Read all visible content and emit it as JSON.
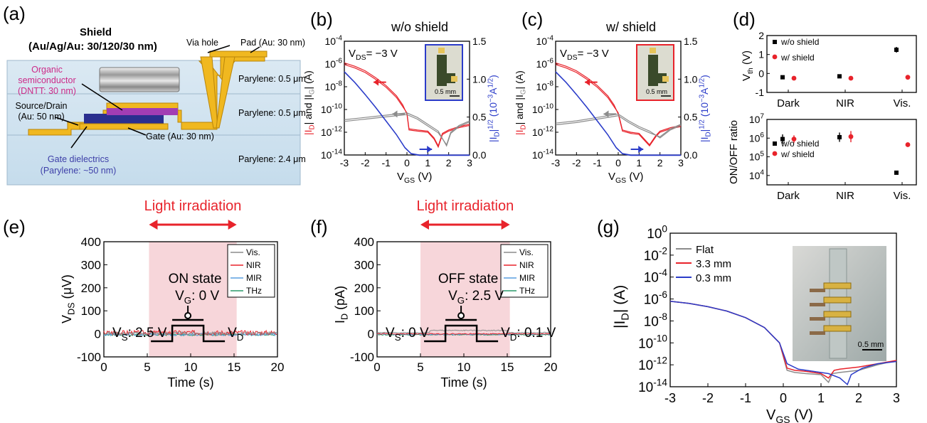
{
  "panel_letters": [
    "(a)",
    "(b)",
    "(c)",
    "(d)",
    "(e)",
    "(f)",
    "(g)"
  ],
  "colors": {
    "red": "#e8232b",
    "blue": "#2b3cc9",
    "gray": "#8c8c8c",
    "green": "#2a9a6a",
    "lightblue": "#5a9fe0",
    "pink": "#f7d6da",
    "gold": "#f0b820",
    "purple": "#a23db4",
    "navy": "#2a2f8f"
  },
  "schematic": {
    "shield": "Shield",
    "shield_spec": "(Au/Ag/Au: 30/120/30 nm)",
    "organic_1": "Organic",
    "organic_2": "semiconductor",
    "organic_3": "(DNTT: 30 nm)",
    "source_drain_1": "Source/Drain",
    "source_drain_2": "(Au: 50 nm)",
    "gate": "Gate (Au: 30 nm)",
    "gate_diel_1": "Gate dielectrics",
    "gate_diel_2": "(Parylene: ~50 nm)",
    "via_hole": "Via hole",
    "pad": "Pad (Au: 30 nm)",
    "parylene_top": "Parylene: 0.5 μm",
    "parylene_mid": "Parylene: 0.5 μm",
    "parylene_bot": "Parylene: 2.4 μm"
  },
  "chart_data": [
    {
      "panel": "b",
      "type": "line",
      "title": "w/o shield",
      "annotation": "VDS= −3 V",
      "inset_scale": "0.5 mm",
      "xlabel": "VGS (V)",
      "ylabel_left": "|ID| and |IG| (A)",
      "ylabel_right": "|ID|1/2 (10−3A1/2)",
      "xlim": [
        -3,
        3
      ],
      "ylim_left_log10": [
        -14,
        -4
      ],
      "ylim_right": [
        0,
        1.5
      ],
      "x_ticks": [
        "-3",
        "-2",
        "-1",
        "0",
        "1",
        "2",
        "3"
      ],
      "y_left_ticks": [
        "10-14",
        "10-12",
        "10-10",
        "10-8",
        "10-6",
        "10-4"
      ],
      "y_right_ticks": [
        "0.0",
        "0.5",
        "1.0",
        "1.5"
      ],
      "series": [
        {
          "quantity": "ID",
          "color": "red",
          "x": [
            -3,
            -2.5,
            -2,
            -1.5,
            -1,
            -0.5,
            -0.2,
            0,
            0.1,
            0.5,
            1,
            1.3,
            1.5,
            1.7,
            2,
            2.5,
            3
          ],
          "log10y": [
            -5.9,
            -6.2,
            -6.6,
            -7.2,
            -7.9,
            -8.8,
            -9.6,
            -10.4,
            -11.8,
            -11.9,
            -12.0,
            -12.6,
            -13.3,
            -12.2,
            -11.9,
            -11.6,
            -11.4
          ]
        },
        {
          "quantity": "IG",
          "color": "gray",
          "x": [
            -3,
            -2,
            -1,
            0,
            0.5,
            1,
            1.5,
            1.9,
            2.1,
            2.5,
            3
          ],
          "log10y": [
            -10.9,
            -10.7,
            -10.5,
            -10.3,
            -10.7,
            -11.3,
            -11.9,
            -13.2,
            -12.1,
            -11.5,
            -11.1
          ]
        },
        {
          "quantity": "ID^1/2",
          "color": "blue",
          "x": [
            -3,
            -2.5,
            -2,
            -1.5,
            -1,
            -0.5,
            -0.1,
            0.2,
            0.6,
            1,
            3
          ],
          "y": [
            1.1,
            0.96,
            0.8,
            0.63,
            0.45,
            0.27,
            0.1,
            0.02,
            0.0,
            0.0,
            0.0
          ]
        }
      ]
    },
    {
      "panel": "c",
      "type": "line",
      "title": "w/ shield",
      "annotation": "VDS= −3 V",
      "inset_scale": "0.5 mm",
      "xlabel": "VGS (V)",
      "ylabel_left": "|ID| and |IG| (A)",
      "ylabel_right": "|ID|1/2 (10−3A1/2)",
      "xlim": [
        -3,
        3
      ],
      "ylim_left_log10": [
        -14,
        -4
      ],
      "ylim_right": [
        0,
        1.5
      ],
      "x_ticks": [
        "-3",
        "-2",
        "-1",
        "0",
        "1",
        "2",
        "3"
      ],
      "y_left_ticks": [
        "10-14",
        "10-12",
        "10-10",
        "10-8",
        "10-6",
        "10-4"
      ],
      "y_right_ticks": [
        "0.0",
        "0.5",
        "1.0",
        "1.5"
      ],
      "series": [
        {
          "quantity": "ID",
          "color": "red",
          "x": [
            -3,
            -2.5,
            -2,
            -1.5,
            -1,
            -0.5,
            -0.2,
            0,
            0.2,
            0.6,
            1,
            1.3,
            1.5,
            1.8,
            2,
            2.5,
            3
          ],
          "log10y": [
            -5.9,
            -6.2,
            -6.6,
            -7.2,
            -7.9,
            -8.8,
            -9.6,
            -10.4,
            -11.9,
            -12.1,
            -12.2,
            -12.8,
            -13.2,
            -12.4,
            -12.0,
            -11.7,
            -11.5
          ]
        },
        {
          "quantity": "IG",
          "color": "gray",
          "x": [
            -3,
            -2,
            -1,
            0,
            0.5,
            1,
            1.5,
            2,
            2.5,
            3
          ],
          "log10y": [
            -11.2,
            -11.0,
            -10.7,
            -10.4,
            -11.0,
            -11.5,
            -11.9,
            -12.5,
            -11.8,
            -11.4
          ]
        },
        {
          "quantity": "ID^1/2",
          "color": "blue",
          "x": [
            -3,
            -2.5,
            -2,
            -1.5,
            -1,
            -0.5,
            -0.1,
            0.2,
            0.6,
            1,
            3
          ],
          "y": [
            1.1,
            0.96,
            0.8,
            0.63,
            0.45,
            0.27,
            0.1,
            0.02,
            0.0,
            0.0,
            0.0
          ]
        }
      ]
    },
    {
      "panel": "d-top",
      "type": "scatter",
      "ylabel": "Vth (V)",
      "categories": [
        "Dark",
        "NIR",
        "Vis."
      ],
      "ylim": [
        -1,
        2
      ],
      "y_ticks": [
        "-1",
        "0",
        "1",
        "2"
      ],
      "legend": [
        "w/o shield",
        "w/ shield"
      ],
      "series": [
        {
          "name": "w/o shield",
          "color": "black",
          "values": [
            -0.2,
            -0.15,
            1.25
          ],
          "err": [
            0.1,
            0.1,
            0.15
          ]
        },
        {
          "name": "w/ shield",
          "color": "red",
          "values": [
            -0.25,
            -0.25,
            -0.2
          ],
          "err": [
            0.1,
            0.1,
            0.12
          ]
        }
      ]
    },
    {
      "panel": "d-bottom",
      "type": "scatter",
      "ylabel": "ON/OFF ratio",
      "categories": [
        "Dark",
        "NIR",
        "Vis."
      ],
      "ylim_log10": [
        3.5,
        7
      ],
      "y_ticks": [
        "104",
        "105",
        "106",
        "107"
      ],
      "legend": [
        "w/o shield",
        "w/ shield"
      ],
      "series": [
        {
          "name": "w/o shield",
          "color": "black",
          "log10": [
            5.95,
            6.05,
            4.15
          ],
          "err": [
            0.25,
            0.25,
            0.05
          ]
        },
        {
          "name": "w/ shield",
          "color": "red",
          "log10": [
            5.95,
            6.08,
            5.65
          ],
          "err": [
            0.2,
            0.3,
            0.12
          ]
        }
      ]
    },
    {
      "panel": "e",
      "type": "line",
      "headline": "Light irradiation",
      "state": "ON state",
      "gate_label": "VG: 0 V",
      "source_label": "VS: 2.5 V",
      "drain_label": "VD",
      "xlabel": "Time (s)",
      "ylabel": "VDS (μV)",
      "xlim": [
        0,
        20
      ],
      "ylim": [
        -100,
        400
      ],
      "x_ticks": [
        "0",
        "5",
        "10",
        "15",
        "20"
      ],
      "y_ticks": [
        "-100",
        "0",
        "100",
        "200",
        "300",
        "400"
      ],
      "irradiation": [
        5.2,
        15.3
      ],
      "legend": [
        "Vis.",
        "NIR",
        "MIR",
        "THz"
      ],
      "series": [
        {
          "name": "Vis.",
          "color": "gray",
          "level": 2,
          "noise": 7
        },
        {
          "name": "NIR",
          "color": "red",
          "level": 5,
          "noise": 10
        },
        {
          "name": "MIR",
          "color": "lightblue",
          "level": -2,
          "noise": 6
        },
        {
          "name": "THz",
          "color": "green",
          "level": -4,
          "noise": 4
        }
      ]
    },
    {
      "panel": "f",
      "type": "line",
      "headline": "Light irradiation",
      "state": "OFF state",
      "gate_label": "VG: 2.5 V",
      "source_label": "VS: 0 V",
      "drain_label": "VD: 0.1 V",
      "xlabel": "Time (s)",
      "ylabel": "ID (pA)",
      "xlim": [
        0,
        20
      ],
      "ylim": [
        -100,
        400
      ],
      "x_ticks": [
        "0",
        "5",
        "10",
        "15",
        "20"
      ],
      "y_ticks": [
        "-100",
        "0",
        "100",
        "200",
        "300",
        "400"
      ],
      "irradiation": [
        5.0,
        15.3
      ],
      "legend": [
        "Vis.",
        "NIR",
        "MIR",
        "THz"
      ],
      "series": [
        {
          "name": "Vis.",
          "color": "gray",
          "level": 5,
          "noise": 2,
          "step": [
            6,
            15,
            18
          ]
        },
        {
          "name": "NIR",
          "color": "red",
          "level": 0,
          "noise": 2
        },
        {
          "name": "MIR",
          "color": "lightblue",
          "level": -2,
          "noise": 3
        },
        {
          "name": "THz",
          "color": "green",
          "level": -4,
          "noise": 2
        }
      ]
    },
    {
      "panel": "g",
      "type": "line",
      "xlabel": "VGS (V)",
      "ylabel": "|ID| (A)",
      "xlim": [
        -3,
        3
      ],
      "ylim_log10": [
        -14,
        0
      ],
      "x_ticks": [
        "-3",
        "-2",
        "-1",
        "0",
        "1",
        "2",
        "3"
      ],
      "y_ticks": [
        "10-14",
        "10-12",
        "10-10",
        "10-8",
        "10-6",
        "10-4",
        "10-2",
        "100"
      ],
      "inset_scale": "0.5 mm",
      "legend": [
        "Flat",
        "3.3 mm",
        "0.3 mm"
      ],
      "series": [
        {
          "name": "Flat",
          "color": "gray",
          "x": [
            -3,
            -2.5,
            -2,
            -1.5,
            -1,
            -0.5,
            -0.1,
            0.1,
            0.3,
            0.6,
            1,
            1.2,
            1.3,
            1.5,
            2,
            2.5,
            3
          ],
          "log10y": [
            -6.2,
            -6.4,
            -6.7,
            -7.1,
            -7.7,
            -8.6,
            -10.0,
            -12.5,
            -12.7,
            -12.8,
            -12.9,
            -13.6,
            -12.8,
            -12.7,
            -12.5,
            -12.0,
            -11.6
          ]
        },
        {
          "name": "3.3 mm",
          "color": "red",
          "x": [
            -3,
            -2.5,
            -2,
            -1.5,
            -1,
            -0.5,
            -0.1,
            0.1,
            0.3,
            0.6,
            1,
            1.2,
            1.35,
            1.5,
            2,
            2.5,
            3
          ],
          "log10y": [
            -6.2,
            -6.4,
            -6.7,
            -7.1,
            -7.7,
            -8.6,
            -10.0,
            -12.3,
            -12.5,
            -12.6,
            -12.8,
            -13.2,
            -12.5,
            -12.4,
            -12.2,
            -11.9,
            -11.6
          ]
        },
        {
          "name": "0.3 mm",
          "color": "blue",
          "x": [
            -3,
            -2.5,
            -2,
            -1.5,
            -1,
            -0.5,
            -0.1,
            0.1,
            0.4,
            0.8,
            1.2,
            1.5,
            1.7,
            1.8,
            2.1,
            2.5,
            3
          ],
          "log10y": [
            -6.2,
            -6.4,
            -6.7,
            -7.1,
            -7.7,
            -8.6,
            -10.0,
            -11.9,
            -12.4,
            -12.6,
            -12.8,
            -13.2,
            -13.8,
            -12.9,
            -12.3,
            -11.9,
            -11.7
          ]
        }
      ]
    }
  ]
}
